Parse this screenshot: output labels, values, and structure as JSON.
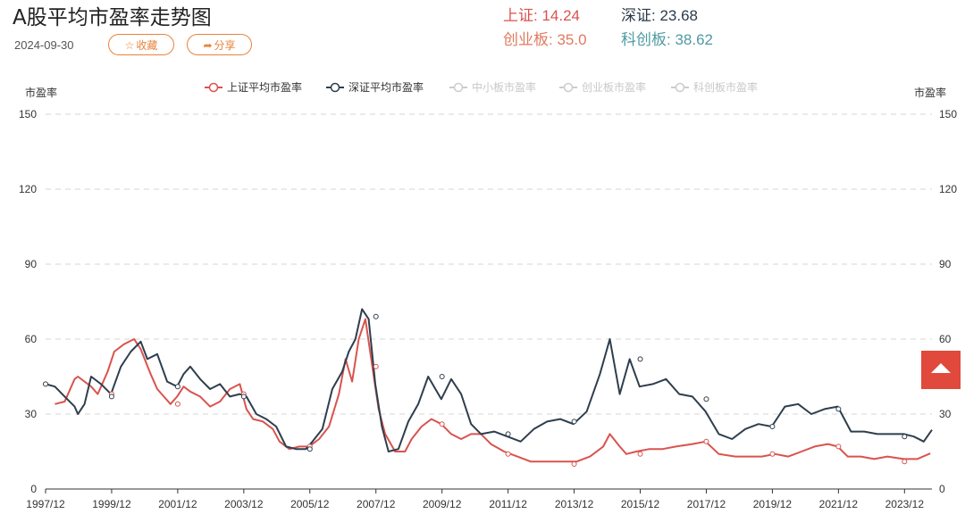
{
  "header": {
    "title": "A股平均市盈率走势图",
    "date": "2024-09-30",
    "fav_label": "收藏",
    "share_label": "分享"
  },
  "stats": {
    "sh": "上证: 14.24",
    "sz": "深证: 23.68",
    "cy": "创业板: 35.0",
    "kc": "科创板: 38.62"
  },
  "colors": {
    "sh": "#d9534f",
    "sz": "#2f3e4e",
    "inactive": "#cccccc",
    "accent": "#e0493c"
  },
  "chart_data": {
    "type": "line",
    "ylabel_left": "市盈率",
    "ylabel_right": "市盈率",
    "ylim": [
      0,
      150
    ],
    "yticks": [
      0,
      30,
      60,
      90,
      120,
      150
    ],
    "xlim": [
      1997.92,
      2024.75
    ],
    "xticks": [
      {
        "label": "1997/12",
        "x": 1997.92
      },
      {
        "label": "1999/12",
        "x": 1999.92
      },
      {
        "label": "2001/12",
        "x": 2001.92
      },
      {
        "label": "2003/12",
        "x": 2003.92
      },
      {
        "label": "2005/12",
        "x": 2005.92
      },
      {
        "label": "2007/12",
        "x": 2007.92
      },
      {
        "label": "2009/12",
        "x": 2009.92
      },
      {
        "label": "2011/12",
        "x": 2011.92
      },
      {
        "label": "2013/12",
        "x": 2013.92
      },
      {
        "label": "2015/12",
        "x": 2015.92
      },
      {
        "label": "2017/12",
        "x": 2017.92
      },
      {
        "label": "2019/12",
        "x": 2019.92
      },
      {
        "label": "2021/12",
        "x": 2021.92
      },
      {
        "label": "2023/12",
        "x": 2023.92
      }
    ],
    "grid": true,
    "legend_position": "top-center",
    "legend": [
      {
        "name": "上证平均市盈率",
        "active": true
      },
      {
        "name": "深证平均市盈率",
        "active": true
      },
      {
        "name": "中小板市盈率",
        "active": false
      },
      {
        "name": "创业板市盈率",
        "active": false
      },
      {
        "name": "科创板市盈率",
        "active": false
      }
    ],
    "series": [
      {
        "name": "上证平均市盈率",
        "x": [
          1998.2,
          1998.5,
          1998.8,
          1998.9,
          1999.3,
          1999.5,
          1999.8,
          2000.0,
          2000.3,
          2000.6,
          2000.8,
          2001.1,
          2001.3,
          2001.5,
          2001.7,
          2001.9,
          2002.1,
          2002.3,
          2002.6,
          2002.9,
          2003.2,
          2003.5,
          2003.8,
          2004.0,
          2004.2,
          2004.5,
          2004.8,
          2005.0,
          2005.3,
          2005.6,
          2005.9,
          2006.2,
          2006.5,
          2006.8,
          2007.0,
          2007.2,
          2007.4,
          2007.6,
          2007.8,
          2008.0,
          2008.2,
          2008.5,
          2008.8,
          2009.0,
          2009.3,
          2009.6,
          2009.9,
          2010.2,
          2010.5,
          2010.8,
          2011.1,
          2011.4,
          2011.8,
          2012.2,
          2012.6,
          2013.0,
          2013.5,
          2014.0,
          2014.4,
          2014.8,
          2015.0,
          2015.3,
          2015.5,
          2015.8,
          2016.2,
          2016.6,
          2017.0,
          2017.5,
          2017.9,
          2018.3,
          2018.8,
          2019.2,
          2019.6,
          2020.0,
          2020.4,
          2020.8,
          2021.2,
          2021.6,
          2021.9,
          2022.2,
          2022.6,
          2023.0,
          2023.4,
          2023.9,
          2024.3,
          2024.7
        ],
        "y": [
          34,
          35,
          44,
          45,
          41,
          38,
          47,
          55,
          58,
          60,
          56,
          46,
          40,
          37,
          34,
          37,
          41,
          39,
          37,
          33,
          35,
          40,
          42,
          32,
          28,
          27,
          24,
          19,
          16,
          17,
          17,
          20,
          25,
          38,
          52,
          43,
          60,
          68,
          50,
          32,
          22,
          15,
          15,
          20,
          25,
          28,
          26,
          22,
          20,
          22,
          22,
          18,
          15,
          13,
          11,
          11,
          11,
          11,
          13,
          17,
          22,
          17,
          14,
          15,
          16,
          16,
          17,
          18,
          19,
          14,
          13,
          13,
          13,
          14,
          13,
          15,
          17,
          18,
          17,
          13,
          13,
          12,
          13,
          12,
          12,
          14.24
        ]
      },
      {
        "name": "深证平均市盈率",
        "x": [
          1997.92,
          1998.2,
          1998.5,
          1998.8,
          1998.9,
          1999.1,
          1999.3,
          1999.6,
          1999.9,
          2000.2,
          2000.5,
          2000.8,
          2001.0,
          2001.3,
          2001.6,
          2001.9,
          2002.1,
          2002.3,
          2002.6,
          2002.9,
          2003.2,
          2003.5,
          2003.8,
          2004.0,
          2004.3,
          2004.6,
          2004.9,
          2005.2,
          2005.5,
          2005.8,
          2006.0,
          2006.3,
          2006.6,
          2006.9,
          2007.1,
          2007.3,
          2007.5,
          2007.7,
          2007.9,
          2008.1,
          2008.3,
          2008.6,
          2008.9,
          2009.2,
          2009.5,
          2009.9,
          2010.2,
          2010.5,
          2010.8,
          2011.1,
          2011.5,
          2011.9,
          2012.3,
          2012.7,
          2013.1,
          2013.5,
          2013.9,
          2014.3,
          2014.7,
          2015.0,
          2015.3,
          2015.6,
          2015.9,
          2016.3,
          2016.7,
          2017.1,
          2017.5,
          2017.9,
          2018.3,
          2018.7,
          2019.1,
          2019.5,
          2019.9,
          2020.3,
          2020.7,
          2021.1,
          2021.5,
          2021.9,
          2022.3,
          2022.7,
          2023.1,
          2023.5,
          2023.9,
          2024.2,
          2024.5,
          2024.75
        ],
        "y": [
          42,
          41,
          37,
          33,
          30,
          34,
          45,
          42,
          38,
          49,
          55,
          59,
          52,
          54,
          43,
          41,
          46,
          49,
          44,
          40,
          42,
          37,
          38,
          37,
          30,
          28,
          25,
          17,
          16,
          16,
          19,
          24,
          40,
          47,
          55,
          60,
          72,
          68,
          42,
          25,
          15,
          16,
          27,
          34,
          45,
          36,
          44,
          38,
          26,
          22,
          23,
          21,
          19,
          24,
          27,
          28,
          26,
          31,
          46,
          60,
          38,
          52,
          41,
          42,
          44,
          38,
          37,
          31,
          22,
          20,
          24,
          26,
          25,
          33,
          34,
          30,
          32,
          33,
          23,
          23,
          22,
          22,
          22,
          21,
          19,
          23.68
        ]
      }
    ],
    "markers": [
      {
        "series": 0,
        "x": 1999.92,
        "y": 38
      },
      {
        "series": 0,
        "x": 2001.92,
        "y": 34
      },
      {
        "series": 0,
        "x": 2003.92,
        "y": 38
      },
      {
        "series": 0,
        "x": 2005.92,
        "y": 17
      },
      {
        "series": 0,
        "x": 2007.92,
        "y": 49
      },
      {
        "series": 0,
        "x": 2009.92,
        "y": 26
      },
      {
        "series": 0,
        "x": 2011.92,
        "y": 14
      },
      {
        "series": 0,
        "x": 2013.92,
        "y": 10
      },
      {
        "series": 0,
        "x": 2015.92,
        "y": 14
      },
      {
        "series": 0,
        "x": 2017.92,
        "y": 19
      },
      {
        "series": 0,
        "x": 2019.92,
        "y": 14
      },
      {
        "series": 0,
        "x": 2021.92,
        "y": 17
      },
      {
        "series": 0,
        "x": 2023.92,
        "y": 11
      },
      {
        "series": 1,
        "x": 1997.92,
        "y": 42
      },
      {
        "series": 1,
        "x": 1999.92,
        "y": 37
      },
      {
        "series": 1,
        "x": 2001.92,
        "y": 41
      },
      {
        "series": 1,
        "x": 2003.92,
        "y": 37
      },
      {
        "series": 1,
        "x": 2005.92,
        "y": 16
      },
      {
        "series": 1,
        "x": 2007.92,
        "y": 69
      },
      {
        "series": 1,
        "x": 2009.92,
        "y": 45
      },
      {
        "series": 1,
        "x": 2011.92,
        "y": 22
      },
      {
        "series": 1,
        "x": 2013.92,
        "y": 27
      },
      {
        "series": 1,
        "x": 2015.92,
        "y": 52
      },
      {
        "series": 1,
        "x": 2017.92,
        "y": 36
      },
      {
        "series": 1,
        "x": 2019.92,
        "y": 25
      },
      {
        "series": 1,
        "x": 2021.92,
        "y": 32
      },
      {
        "series": 1,
        "x": 2023.92,
        "y": 21
      }
    ]
  }
}
